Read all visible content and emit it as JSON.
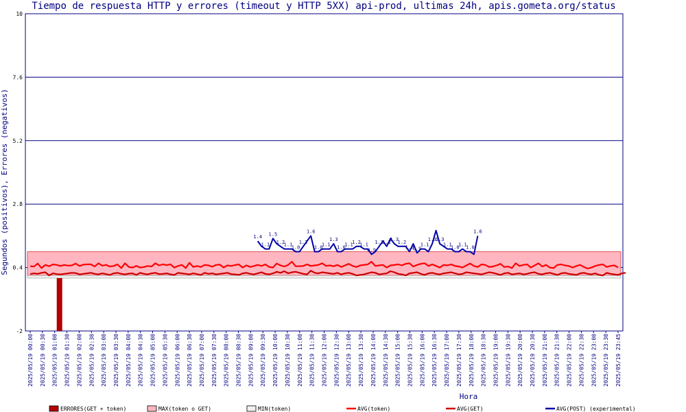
{
  "chart_data": {
    "type": "line",
    "title": "Tiempo de respuesta HTTP y errores (timeout y HTTP 5XX) api-prod, ultimas 24h, apis.gometa.org/status",
    "xlabel": "Hora",
    "ylabel": "Segundos (positivos), Errores (negativos)",
    "ylim": [
      -2,
      10
    ],
    "y_ticks": [
      "10",
      "7.6",
      "5.2",
      "2.8",
      "0.4",
      "-2"
    ],
    "grid": true,
    "x_ticks": [
      "2025/05/19 00:00",
      "2025/05/19 00:30",
      "2025/05/19 01:00",
      "2025/05/19 01:30",
      "2025/05/19 02:00",
      "2025/05/19 02:30",
      "2025/05/19 03:00",
      "2025/05/19 03:30",
      "2025/05/19 04:00",
      "2025/05/19 04:30",
      "2025/05/19 05:00",
      "2025/05/19 05:30",
      "2025/05/19 06:00",
      "2025/05/19 06:30",
      "2025/05/19 07:00",
      "2025/05/19 07:30",
      "2025/05/19 08:00",
      "2025/05/19 08:30",
      "2025/05/19 09:00",
      "2025/05/19 09:30",
      "2025/05/19 10:00",
      "2025/05/19 10:30",
      "2025/05/19 11:00",
      "2025/05/19 11:30",
      "2025/05/19 12:00",
      "2025/05/19 12:30",
      "2025/05/19 13:00",
      "2025/05/19 13:30",
      "2025/05/19 14:00",
      "2025/05/19 14:30",
      "2025/05/19 15:00",
      "2025/05/19 15:30",
      "2025/05/19 16:00",
      "2025/05/19 16:30",
      "2025/05/19 17:00",
      "2025/05/19 17:30",
      "2025/05/19 18:00",
      "2025/05/19 18:30",
      "2025/05/19 19:00",
      "2025/05/19 19:30",
      "2025/05/19 20:00",
      "2025/05/19 20:30",
      "2025/05/19 21:00",
      "2025/05/19 21:30",
      "2025/05/19 22:00",
      "2025/05/19 22:30",
      "2025/05/19 23:00",
      "2025/05/19 23:30",
      "2025/05/19 23:45"
    ],
    "legend": [
      {
        "label": "ERRORES(GET + token)",
        "color": "#b20000",
        "kind": "bar"
      },
      {
        "label": "MAX(token o GET)",
        "color": "#ffb6c1",
        "kind": "area"
      },
      {
        "label": "MIN(token)",
        "color": "#f0f0f0",
        "kind": "area"
      },
      {
        "label": "AVG(token)",
        "color": "#ff0000",
        "kind": "line"
      },
      {
        "label": "AVG(GET)",
        "color": "#cc0000",
        "kind": "line"
      },
      {
        "label": "AVG(POST) (experimental)",
        "color": "#0000aa",
        "kind": "line"
      }
    ],
    "max_band": 1.0,
    "min_band": 0.1,
    "errors": [
      {
        "x": "2025/05/19 01:00",
        "value": -2
      }
    ],
    "series": [
      {
        "name": "AVG(token)",
        "color": "#ff0000",
        "values": [
          0.45,
          0.44,
          0.55,
          0.38,
          0.5,
          0.45,
          0.52,
          0.5,
          0.46,
          0.5,
          0.47,
          0.48,
          0.55,
          0.46,
          0.51,
          0.52,
          0.52,
          0.44,
          0.56,
          0.47,
          0.5,
          0.44,
          0.46,
          0.52,
          0.38,
          0.56,
          0.42,
          0.4,
          0.46,
          0.4,
          0.42,
          0.46,
          0.44,
          0.56,
          0.48,
          0.52,
          0.49,
          0.52,
          0.4,
          0.46,
          0.5,
          0.38,
          0.58,
          0.42,
          0.46,
          0.42,
          0.5,
          0.48,
          0.43,
          0.5,
          0.51,
          0.4,
          0.48,
          0.46,
          0.49,
          0.52,
          0.4,
          0.48,
          0.42,
          0.46,
          0.5,
          0.46,
          0.52,
          0.42,
          0.4,
          0.55,
          0.48,
          0.44,
          0.5,
          0.62,
          0.45,
          0.45,
          0.46,
          0.52,
          0.46,
          0.48,
          0.5,
          0.56,
          0.46,
          0.48,
          0.45,
          0.5,
          0.42,
          0.48,
          0.54,
          0.46,
          0.42,
          0.48,
          0.5,
          0.52,
          0.62,
          0.46,
          0.48,
          0.5,
          0.4,
          0.48,
          0.5,
          0.52,
          0.48,
          0.54,
          0.56,
          0.44,
          0.5,
          0.54,
          0.56,
          0.46,
          0.52,
          0.46,
          0.4,
          0.5,
          0.48,
          0.52,
          0.46,
          0.44,
          0.4,
          0.48,
          0.55,
          0.46,
          0.42,
          0.52,
          0.5,
          0.42,
          0.44,
          0.48,
          0.54,
          0.42,
          0.44,
          0.38,
          0.56,
          0.46,
          0.5,
          0.52,
          0.4,
          0.48,
          0.56,
          0.44,
          0.5,
          0.4,
          0.38,
          0.5,
          0.52,
          0.48,
          0.46,
          0.4,
          0.46,
          0.5,
          0.42,
          0.36,
          0.4,
          0.46,
          0.5,
          0.52,
          0.42,
          0.46,
          0.48,
          0.4
        ]
      },
      {
        "name": "AVG(GET)",
        "color": "#cc0000",
        "values": [
          0.15,
          0.18,
          0.16,
          0.2,
          0.22,
          0.1,
          0.18,
          0.15,
          0.14,
          0.16,
          0.18,
          0.2,
          0.19,
          0.14,
          0.16,
          0.18,
          0.2,
          0.16,
          0.14,
          0.18,
          0.15,
          0.12,
          0.18,
          0.2,
          0.16,
          0.14,
          0.17,
          0.18,
          0.12,
          0.2,
          0.16,
          0.14,
          0.18,
          0.2,
          0.15,
          0.16,
          0.18,
          0.14,
          0.12,
          0.2,
          0.18,
          0.16,
          0.14,
          0.18,
          0.15,
          0.12,
          0.2,
          0.16,
          0.18,
          0.14,
          0.16,
          0.18,
          0.2,
          0.15,
          0.14,
          0.12,
          0.18,
          0.2,
          0.16,
          0.14,
          0.18,
          0.22,
          0.16,
          0.14,
          0.18,
          0.24,
          0.2,
          0.26,
          0.18,
          0.22,
          0.24,
          0.2,
          0.16,
          0.14,
          0.28,
          0.2,
          0.18,
          0.22,
          0.2,
          0.18,
          0.16,
          0.2,
          0.14,
          0.18,
          0.2,
          0.16,
          0.1,
          0.12,
          0.14,
          0.18,
          0.22,
          0.2,
          0.14,
          0.16,
          0.18,
          0.26,
          0.22,
          0.16,
          0.14,
          0.1,
          0.18,
          0.2,
          0.22,
          0.16,
          0.12,
          0.18,
          0.2,
          0.16,
          0.14,
          0.18,
          0.2,
          0.22,
          0.18,
          0.14,
          0.16,
          0.22,
          0.2,
          0.18,
          0.16,
          0.14,
          0.18,
          0.22,
          0.2,
          0.16,
          0.12,
          0.18,
          0.2,
          0.14,
          0.16,
          0.18,
          0.14,
          0.16,
          0.2,
          0.22,
          0.16,
          0.14,
          0.18,
          0.2,
          0.16,
          0.12,
          0.18,
          0.2,
          0.16,
          0.14,
          0.12,
          0.18,
          0.2,
          0.16,
          0.14,
          0.18,
          0.12,
          0.1,
          0.2,
          0.16,
          0.14,
          0.12,
          0.18,
          0.2
        ]
      },
      {
        "name": "AVG(POST) (experimental)",
        "color": "#0000aa",
        "start_index": 60,
        "values": [
          1.4,
          1.2,
          1.1,
          1.1,
          1.5,
          1.3,
          1.2,
          1.1,
          1.1,
          1.1,
          1.0,
          1.0,
          1.2,
          1.4,
          1.6,
          1.0,
          1.0,
          1.1,
          1.1,
          1.1,
          1.3,
          1.0,
          1.0,
          1.1,
          1.1,
          1.1,
          1.2,
          1.2,
          1.1,
          1.1,
          0.9,
          1.0,
          1.2,
          1.4,
          1.2,
          1.5,
          1.3,
          1.2,
          1.2,
          1.2,
          1.0,
          1.3,
          0.95,
          1.1,
          1.1,
          1.0,
          1.3,
          1.8,
          1.3,
          1.2,
          1.1,
          1.1,
          1.0,
          1.0,
          1.1,
          1.0,
          1.0,
          0.9,
          1.6
        ]
      }
    ]
  }
}
